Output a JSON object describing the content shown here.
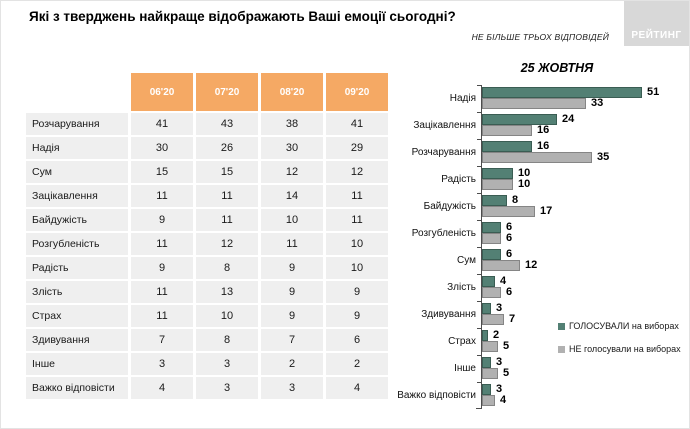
{
  "header": {
    "title": "Які з тверджень найкраще відображають Ваші емоції сьогодні?",
    "note": "НЕ БІЛЬШЕ ТРЬОХ ВІДПОВІДЕЙ",
    "logo": "РЕЙТИНГ"
  },
  "table": {
    "columns": [
      "06'20",
      "07'20",
      "08'20",
      "09'20"
    ],
    "rows": [
      {
        "label": "Розчарування",
        "values": [
          41,
          43,
          38,
          41
        ]
      },
      {
        "label": "Надія",
        "values": [
          30,
          26,
          30,
          29
        ]
      },
      {
        "label": "Сум",
        "values": [
          15,
          15,
          12,
          12
        ]
      },
      {
        "label": "Зацікавлення",
        "values": [
          11,
          11,
          14,
          11
        ]
      },
      {
        "label": "Байдужість",
        "values": [
          9,
          11,
          10,
          11
        ]
      },
      {
        "label": "Розгубленість",
        "values": [
          11,
          12,
          11,
          10
        ]
      },
      {
        "label": "Радість",
        "values": [
          9,
          8,
          9,
          10
        ]
      },
      {
        "label": "Злість",
        "values": [
          11,
          13,
          9,
          9
        ]
      },
      {
        "label": "Страх",
        "values": [
          11,
          10,
          9,
          9
        ]
      },
      {
        "label": "Здивування",
        "values": [
          7,
          8,
          7,
          6
        ]
      },
      {
        "label": "Інше",
        "values": [
          3,
          3,
          2,
          2
        ]
      },
      {
        "label": "Важко відповісти",
        "values": [
          4,
          3,
          3,
          4
        ]
      }
    ]
  },
  "chart_data": {
    "type": "bar",
    "orientation": "horizontal",
    "title": "25 ЖОВТНЯ",
    "categories": [
      "Надія",
      "Зацікавлення",
      "Розчарування",
      "Радість",
      "Байдужість",
      "Розгубленість",
      "Сум",
      "Злість",
      "Здивування",
      "Страх",
      "Інше",
      "Важко відповісти"
    ],
    "series": [
      {
        "name": "ГОЛОСУВАЛИ на виборах",
        "color": "#538074",
        "values": [
          51,
          24,
          16,
          10,
          8,
          6,
          6,
          4,
          3,
          2,
          3,
          3
        ]
      },
      {
        "name": "НЕ голосували на виборах",
        "color": "#b1b1b1",
        "values": [
          33,
          16,
          35,
          10,
          17,
          6,
          12,
          6,
          7,
          5,
          5,
          4
        ]
      }
    ],
    "xlim": [
      0,
      55
    ],
    "grid": false,
    "data_labels": true,
    "legend_position": "right"
  },
  "colors": {
    "table_header_bg": "#f5a964",
    "table_row_bg": "#efefef",
    "series_voted": "#538074",
    "series_not_voted": "#b1b1b1",
    "logo_bg": "#d8d8d8"
  }
}
